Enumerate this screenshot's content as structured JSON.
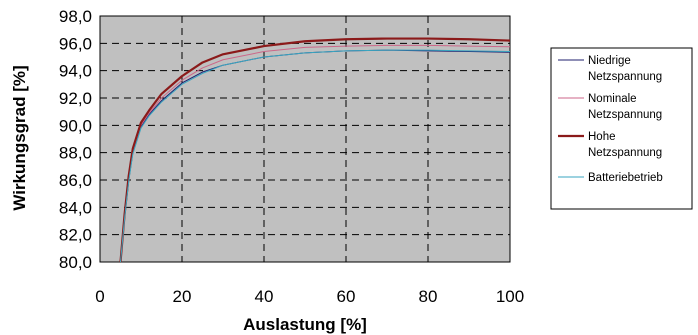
{
  "chart_data": {
    "type": "line",
    "xlabel": "Auslastung [%]",
    "ylabel": "Wirkungsgrad [%]",
    "xlim": [
      0,
      100
    ],
    "ylim": [
      80,
      98
    ],
    "x_ticks": [
      "0",
      "20",
      "40",
      "60",
      "80",
      "100"
    ],
    "y_ticks": [
      "80,0",
      "82,0",
      "84,0",
      "86,0",
      "88,0",
      "90,0",
      "92,0",
      "94,0",
      "96,0",
      "98,0"
    ],
    "grid": true,
    "legend_position": "right",
    "plot_background": "#c0c0c0",
    "x": [
      5,
      6,
      7,
      8,
      10,
      12,
      15,
      20,
      25,
      30,
      40,
      50,
      60,
      70,
      80,
      90,
      100
    ],
    "series": [
      {
        "name": [
          "Niedrige",
          "Netzspannung"
        ],
        "color": "#1f1f6e",
        "width": 1,
        "values": [
          80.0,
          83.3,
          86.0,
          88.0,
          89.9,
          90.8,
          91.8,
          93.1,
          93.9,
          94.4,
          95.0,
          95.3,
          95.45,
          95.5,
          95.45,
          95.4,
          95.35
        ]
      },
      {
        "name": [
          "Nominale",
          "Netzspannung"
        ],
        "color": "#cc6688",
        "width": 1,
        "values": [
          80.0,
          83.4,
          86.1,
          88.1,
          90.0,
          90.9,
          92.0,
          93.3,
          94.2,
          94.8,
          95.4,
          95.7,
          95.8,
          95.85,
          95.85,
          95.8,
          95.75
        ]
      },
      {
        "name": [
          "Hohe",
          "Netzspannung"
        ],
        "color": "#8b1a1a",
        "width": 2.2,
        "values": [
          80.0,
          83.5,
          86.3,
          88.3,
          90.2,
          91.1,
          92.3,
          93.6,
          94.6,
          95.2,
          95.8,
          96.15,
          96.3,
          96.35,
          96.35,
          96.3,
          96.2
        ]
      },
      {
        "name": [
          "Batteriebetrieb"
        ],
        "color": "#3aa6c0",
        "width": 1,
        "values": [
          80.0,
          83.2,
          85.9,
          87.9,
          89.8,
          90.7,
          91.7,
          93.0,
          93.8,
          94.4,
          95.0,
          95.3,
          95.45,
          95.5,
          95.5,
          95.45,
          95.4
        ]
      }
    ]
  }
}
